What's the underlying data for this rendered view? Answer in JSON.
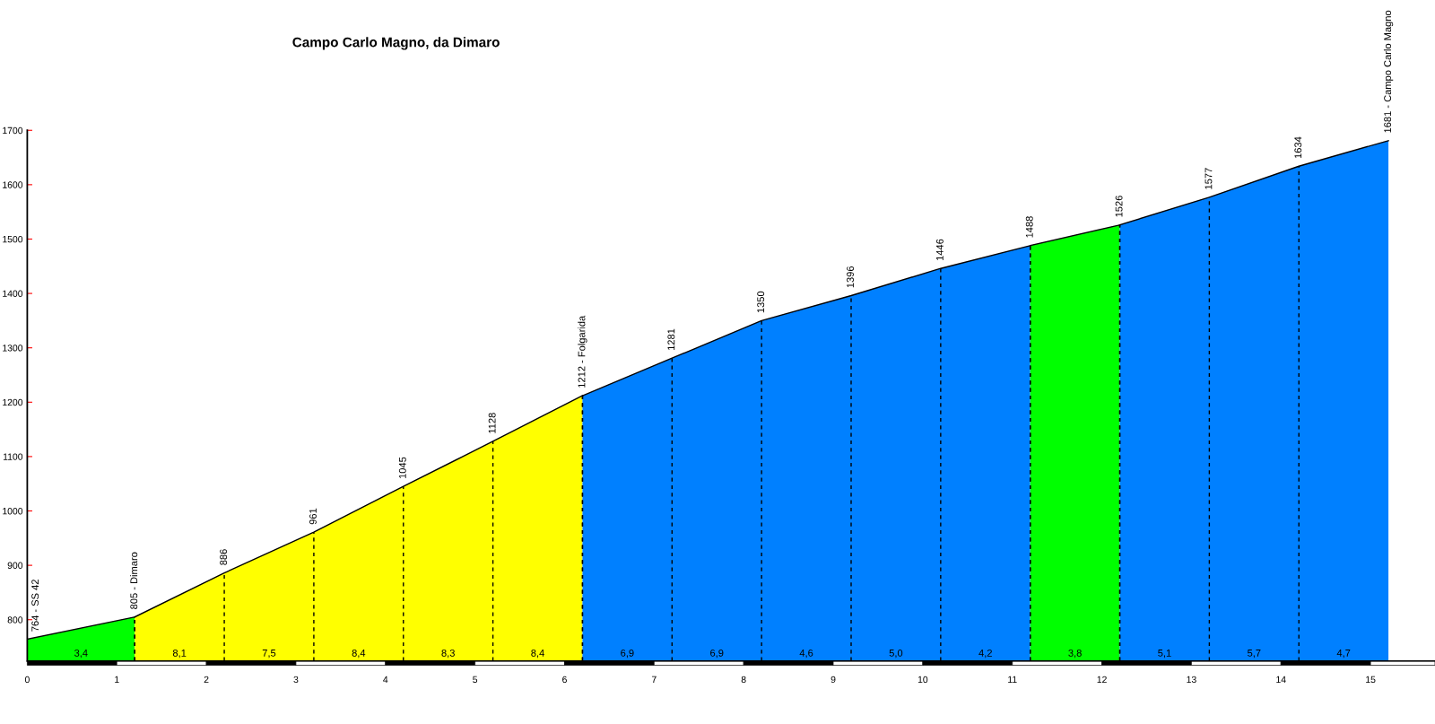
{
  "chart_data": {
    "type": "area",
    "title": "Campo Carlo Magno, da Dimaro",
    "series": [
      {
        "color": "#00ff00",
        "x": [
          0,
          1.2
        ],
        "values": [
          764,
          805
        ]
      },
      {
        "color": "#ffff00",
        "x": [
          1.2,
          2.2,
          3.2,
          4.2,
          5.2,
          6.2
        ],
        "values": [
          805,
          886,
          961,
          1045,
          1128,
          1212
        ]
      },
      {
        "color": "#0080ff",
        "x": [
          6.2,
          7.2,
          8.2,
          9.2,
          10.2,
          11.2
        ],
        "values": [
          1212,
          1281,
          1350,
          1396,
          1446,
          1488
        ]
      },
      {
        "color": "#00ff00",
        "x": [
          11.2,
          12.2
        ],
        "values": [
          1488,
          1526
        ]
      },
      {
        "color": "#0080ff",
        "x": [
          12.2,
          13.2,
          14.2,
          15.2
        ],
        "values": [
          1526,
          1577,
          1634,
          1681
        ]
      }
    ],
    "annotations": [
      {
        "text": "764 - SS 42",
        "x": 0,
        "y": 764
      },
      {
        "text": "805 - Dimaro",
        "x": 1.2,
        "y": 805
      },
      {
        "text": "886",
        "x": 2.2,
        "y": 886
      },
      {
        "text": "961",
        "x": 3.2,
        "y": 961
      },
      {
        "text": "1045",
        "x": 4.2,
        "y": 1045
      },
      {
        "text": "1128",
        "x": 5.2,
        "y": 1128
      },
      {
        "text": "1212 - Folgarida",
        "x": 6.2,
        "y": 1212
      },
      {
        "text": "1281",
        "x": 7.2,
        "y": 1281
      },
      {
        "text": "1350",
        "x": 8.2,
        "y": 1350
      },
      {
        "text": "1396",
        "x": 9.2,
        "y": 1396
      },
      {
        "text": "1446",
        "x": 10.2,
        "y": 1446
      },
      {
        "text": "1488",
        "x": 11.2,
        "y": 1488
      },
      {
        "text": "1526",
        "x": 12.2,
        "y": 1526
      },
      {
        "text": "1577",
        "x": 13.2,
        "y": 1577
      },
      {
        "text": "1634",
        "x": 14.2,
        "y": 1634
      },
      {
        "text": "1681 - Campo Carlo Magno",
        "x": 15.2,
        "y": 1681
      },
      "3,4",
      "8,1",
      "7,5",
      "8,4",
      "8,3",
      "8,4",
      "6,9",
      "6,9",
      "4,6",
      "5,0",
      "4,2",
      "3,8",
      "5,1",
      "5,7",
      "4,7"
    ],
    "xlim": [
      0,
      15.72
    ],
    "ylim": [
      724,
      1700
    ],
    "xticks": [
      0,
      1,
      2,
      3,
      4,
      5,
      6,
      7,
      8,
      9,
      10,
      11,
      12,
      13,
      14,
      15
    ],
    "yticks": [
      800,
      900,
      1000,
      1100,
      1200,
      1300,
      1400,
      1500,
      1600,
      1700
    ],
    "grid": false,
    "legend": false
  }
}
